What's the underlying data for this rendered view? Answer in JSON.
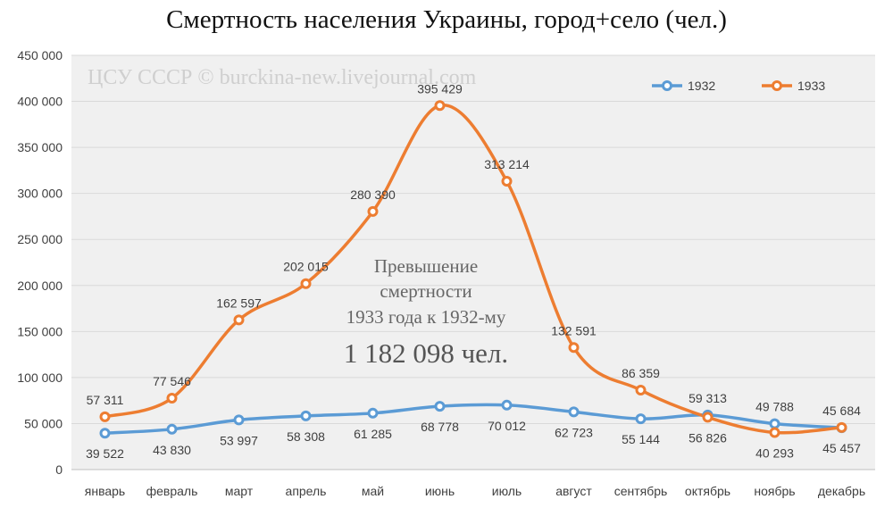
{
  "chart_data": {
    "type": "line",
    "title": "Смертность населения Украины, город+село (чел.)",
    "watermark": "ЦСУ СССР © burckina-new.livejournal.com",
    "categories": [
      "январь",
      "февраль",
      "март",
      "апрель",
      "май",
      "июнь",
      "июль",
      "август",
      "сентябрь",
      "октябрь",
      "ноябрь",
      "декабрь"
    ],
    "y_ticks": [
      "0",
      "50 000",
      "100 000",
      "150 000",
      "200 000",
      "250 000",
      "300 000",
      "350 000",
      "400 000",
      "450 000"
    ],
    "ylim": [
      0,
      450000
    ],
    "grid": true,
    "legend_position": "top-right",
    "series": [
      {
        "name": "1932",
        "color": "#5B9BD5",
        "values": [
          39522,
          43830,
          53997,
          58308,
          61285,
          68778,
          70012,
          62723,
          55144,
          59313,
          49788,
          45457
        ],
        "labels": [
          "39 522",
          "43 830",
          "53 997",
          "58 308",
          "61 285",
          "68 778",
          "70 012",
          "62 723",
          "55 144",
          "59 313",
          "49 788",
          "45 457"
        ]
      },
      {
        "name": "1933",
        "color": "#ED7D31",
        "values": [
          57311,
          77546,
          162597,
          202015,
          280390,
          395429,
          313214,
          132591,
          86359,
          56826,
          40293,
          45684
        ],
        "labels": [
          "57 311",
          "77 546",
          "162 597",
          "202 015",
          "280 390",
          "395 429",
          "313 214",
          "132 591",
          "86 359",
          "56 826",
          "40 293",
          "45 684"
        ]
      }
    ],
    "annotation": {
      "lines": [
        "Превышение",
        "смертности",
        "1933 года к 1932-му"
      ],
      "value": "1 182 098 чел."
    }
  }
}
